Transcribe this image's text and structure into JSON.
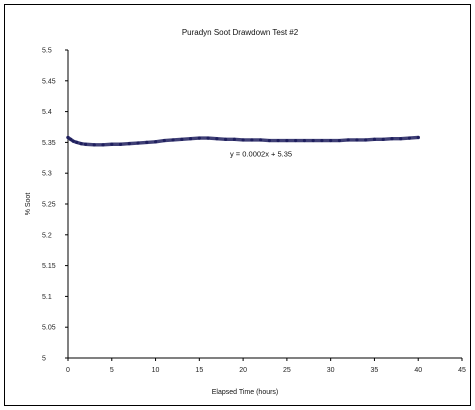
{
  "chart_data": {
    "type": "scatter",
    "title": "Puradyn Soot Drawdown Test #2",
    "xlabel": "Elapsed Time (hours)",
    "ylabel": "% Soot",
    "xlim": [
      0,
      45
    ],
    "ylim": [
      5,
      5.5
    ],
    "x_ticks": [
      "0",
      "5",
      "10",
      "15",
      "20",
      "25",
      "30",
      "35",
      "40",
      "45"
    ],
    "y_ticks": [
      "5",
      "5.05",
      "5.1",
      "5.15",
      "5.2",
      "5.25",
      "5.3",
      "5.35",
      "5.4",
      "5.45",
      "5.5"
    ],
    "grid": false,
    "legend": "none",
    "series": [
      {
        "color": "#1f1f5e",
        "x": [
          0,
          0.3,
          0.6,
          1,
          1.5,
          2,
          3,
          4,
          5,
          6,
          7,
          8,
          9,
          10,
          11,
          12,
          13,
          14,
          15,
          16,
          17,
          18,
          19,
          20,
          21,
          22,
          23,
          24,
          25,
          26,
          27,
          28,
          29,
          30,
          31,
          32,
          33,
          34,
          35,
          36,
          37,
          38,
          39,
          40
        ],
        "y": [
          5.358,
          5.355,
          5.352,
          5.35,
          5.348,
          5.347,
          5.346,
          5.346,
          5.347,
          5.347,
          5.348,
          5.349,
          5.35,
          5.351,
          5.353,
          5.354,
          5.355,
          5.356,
          5.357,
          5.357,
          5.356,
          5.355,
          5.355,
          5.354,
          5.354,
          5.354,
          5.353,
          5.353,
          5.353,
          5.353,
          5.353,
          5.353,
          5.353,
          5.353,
          5.353,
          5.354,
          5.354,
          5.354,
          5.355,
          5.355,
          5.356,
          5.356,
          5.357,
          5.358
        ]
      }
    ],
    "annotations": [
      {
        "text": "y = 0.0002x + 5.35"
      }
    ]
  }
}
